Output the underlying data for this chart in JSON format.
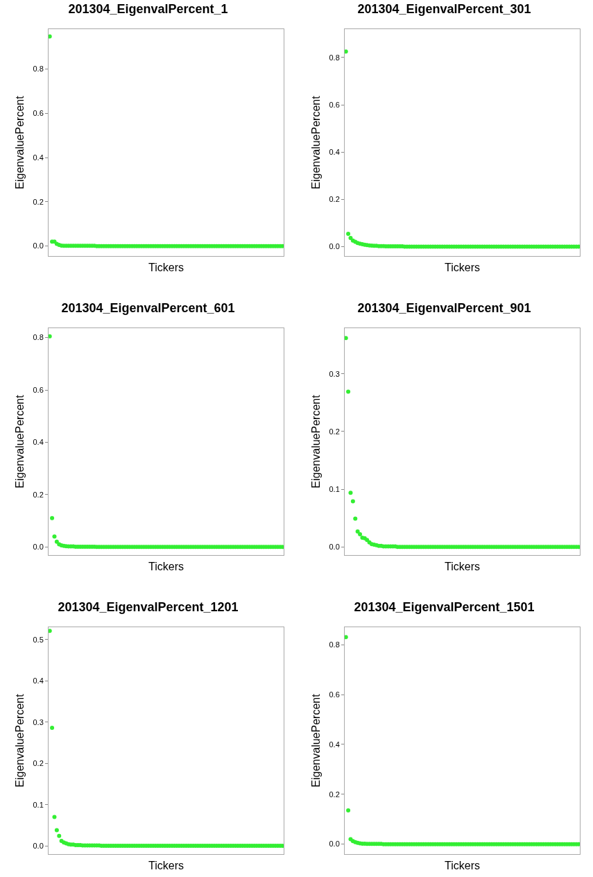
{
  "chart_data": [
    {
      "type": "scatter",
      "title": "201304_EigenvalPercent_1",
      "xlabel": "Tickers",
      "ylabel": "EigenvaluePercent",
      "marker": "circle",
      "grid": false,
      "ylim": [
        -0.045,
        0.98
      ],
      "yticks": [
        {
          "value": 0,
          "label": "0.0"
        },
        {
          "value": 0.2,
          "label": "0.2"
        },
        {
          "value": 0.4,
          "label": "0.4"
        },
        {
          "value": 0.6,
          "label": "0.6"
        },
        {
          "value": 0.8,
          "label": "0.8"
        }
      ],
      "categories": [
        null,
        null,
        null,
        null,
        null,
        null,
        null,
        null,
        null,
        null,
        null,
        null,
        null,
        null,
        null,
        null,
        null,
        null,
        null,
        null,
        null,
        null,
        null,
        null,
        null,
        null,
        null,
        null,
        null,
        null,
        null,
        null,
        null,
        null,
        null,
        null,
        null,
        null,
        null,
        null,
        null,
        null,
        null,
        null,
        null,
        null,
        null,
        null,
        null,
        null,
        null,
        null,
        null,
        null,
        null,
        null,
        null,
        null,
        null,
        null,
        null,
        null,
        null,
        null,
        null,
        null,
        null,
        null,
        null,
        null,
        null,
        null,
        null,
        null,
        null,
        null,
        null,
        null,
        null,
        null,
        null,
        null,
        null,
        null,
        null,
        null,
        null,
        null,
        null,
        null,
        null,
        null,
        null,
        null,
        null,
        null,
        null,
        null,
        null,
        null
      ],
      "series": [
        {
          "color": "#33ee33",
          "values": [
            0.947,
            0.02,
            0.02,
            0.01,
            0.005,
            0.002,
            0.001,
            0.001,
            0.001,
            0.001,
            0.001,
            0.001,
            0.001,
            0.001,
            0.001,
            0.001,
            0.001,
            0.001,
            0.001,
            0.001,
            0,
            0,
            0,
            0,
            0,
            0,
            0,
            0,
            0,
            0,
            0,
            0,
            0,
            0,
            0,
            0,
            0,
            0,
            0,
            0,
            0,
            0,
            0,
            0,
            0,
            0,
            0,
            0,
            0,
            0,
            0,
            0,
            0,
            0,
            0,
            0,
            0,
            0,
            0,
            0,
            0,
            0,
            0,
            0,
            0,
            0,
            0,
            0,
            0,
            0,
            0,
            0,
            0,
            0,
            0,
            0,
            0,
            0,
            0,
            0,
            0,
            0,
            0,
            0,
            0,
            0,
            0,
            0,
            0,
            0,
            0,
            0,
            0,
            0,
            0,
            0,
            0,
            0,
            0,
            0
          ]
        }
      ]
    },
    {
      "type": "scatter",
      "title": "201304_EigenvalPercent_301",
      "xlabel": "Tickers",
      "ylabel": "EigenvaluePercent",
      "marker": "circle",
      "grid": false,
      "ylim": [
        -0.04,
        0.92
      ],
      "yticks": [
        {
          "value": 0,
          "label": "0.0"
        },
        {
          "value": 0.2,
          "label": "0.2"
        },
        {
          "value": 0.4,
          "label": "0.4"
        },
        {
          "value": 0.6,
          "label": "0.6"
        },
        {
          "value": 0.8,
          "label": "0.8"
        }
      ],
      "categories": [
        null,
        null,
        null,
        null,
        null,
        null,
        null,
        null,
        null,
        null,
        null,
        null,
        null,
        null,
        null,
        null,
        null,
        null,
        null,
        null,
        null,
        null,
        null,
        null,
        null,
        null,
        null,
        null,
        null,
        null,
        null,
        null,
        null,
        null,
        null,
        null,
        null,
        null,
        null,
        null,
        null,
        null,
        null,
        null,
        null,
        null,
        null,
        null,
        null,
        null,
        null,
        null,
        null,
        null,
        null,
        null,
        null,
        null,
        null,
        null,
        null,
        null,
        null,
        null,
        null,
        null,
        null,
        null,
        null,
        null,
        null,
        null,
        null,
        null,
        null,
        null,
        null,
        null,
        null,
        null,
        null,
        null,
        null,
        null,
        null,
        null,
        null,
        null,
        null,
        null,
        null,
        null,
        null,
        null,
        null,
        null,
        null,
        null,
        null,
        null
      ],
      "series": [
        {
          "color": "#33ee33",
          "values": [
            0.825,
            0.054,
            0.036,
            0.025,
            0.02,
            0.015,
            0.012,
            0.01,
            0.008,
            0.006,
            0.005,
            0.004,
            0.003,
            0.003,
            0.002,
            0.002,
            0.002,
            0.001,
            0.001,
            0.001,
            0.001,
            0.001,
            0.001,
            0.001,
            0.001,
            0,
            0,
            0,
            0,
            0,
            0,
            0,
            0,
            0,
            0,
            0,
            0,
            0,
            0,
            0,
            0,
            0,
            0,
            0,
            0,
            0,
            0,
            0,
            0,
            0,
            0,
            0,
            0,
            0,
            0,
            0,
            0,
            0,
            0,
            0,
            0,
            0,
            0,
            0,
            0,
            0,
            0,
            0,
            0,
            0,
            0,
            0,
            0,
            0,
            0,
            0,
            0,
            0,
            0,
            0,
            0,
            0,
            0,
            0,
            0,
            0,
            0,
            0,
            0,
            0,
            0,
            0,
            0,
            0,
            0,
            0,
            0,
            0,
            0,
            0
          ]
        }
      ]
    },
    {
      "type": "scatter",
      "title": "201304_EigenvalPercent_601",
      "xlabel": "Tickers",
      "ylabel": "EigenvaluePercent",
      "marker": "circle",
      "grid": false,
      "ylim": [
        -0.031,
        0.836
      ],
      "yticks": [
        {
          "value": 0,
          "label": "0.0"
        },
        {
          "value": 0.2,
          "label": "0.2"
        },
        {
          "value": 0.4,
          "label": "0.4"
        },
        {
          "value": 0.6,
          "label": "0.6"
        },
        {
          "value": 0.8,
          "label": "0.8"
        }
      ],
      "categories": [
        null,
        null,
        null,
        null,
        null,
        null,
        null,
        null,
        null,
        null,
        null,
        null,
        null,
        null,
        null,
        null,
        null,
        null,
        null,
        null,
        null,
        null,
        null,
        null,
        null,
        null,
        null,
        null,
        null,
        null,
        null,
        null,
        null,
        null,
        null,
        null,
        null,
        null,
        null,
        null,
        null,
        null,
        null,
        null,
        null,
        null,
        null,
        null,
        null,
        null,
        null,
        null,
        null,
        null,
        null,
        null,
        null,
        null,
        null,
        null,
        null,
        null,
        null,
        null,
        null,
        null,
        null,
        null,
        null,
        null,
        null,
        null,
        null,
        null,
        null,
        null,
        null,
        null,
        null,
        null,
        null,
        null,
        null,
        null,
        null,
        null,
        null,
        null,
        null,
        null,
        null,
        null,
        null,
        null,
        null,
        null,
        null,
        null,
        null,
        null
      ],
      "series": [
        {
          "color": "#33ee33",
          "values": [
            0.805,
            0.11,
            0.04,
            0.02,
            0.01,
            0.006,
            0.004,
            0.003,
            0.002,
            0.002,
            0.002,
            0.001,
            0.001,
            0.001,
            0.001,
            0.001,
            0.001,
            0.001,
            0.001,
            0.001,
            0,
            0,
            0,
            0,
            0,
            0,
            0,
            0,
            0,
            0,
            0,
            0,
            0,
            0,
            0,
            0,
            0,
            0,
            0,
            0,
            0,
            0,
            0,
            0,
            0,
            0,
            0,
            0,
            0,
            0,
            0,
            0,
            0,
            0,
            0,
            0,
            0,
            0,
            0,
            0,
            0,
            0,
            0,
            0,
            0,
            0,
            0,
            0,
            0,
            0,
            0,
            0,
            0,
            0,
            0,
            0,
            0,
            0,
            0,
            0,
            0,
            0,
            0,
            0,
            0,
            0,
            0,
            0,
            0,
            0,
            0,
            0,
            0,
            0,
            0,
            0,
            0,
            0,
            0,
            0
          ]
        }
      ]
    },
    {
      "type": "scatter",
      "title": "201304_EigenvalPercent_901",
      "xlabel": "Tickers",
      "ylabel": "EigenvaluePercent",
      "marker": "circle",
      "grid": false,
      "ylim": [
        -0.014,
        0.379
      ],
      "yticks": [
        {
          "value": 0,
          "label": "0.0"
        },
        {
          "value": 0.1,
          "label": "0.1"
        },
        {
          "value": 0.2,
          "label": "0.2"
        },
        {
          "value": 0.3,
          "label": "0.3"
        }
      ],
      "categories": [
        null,
        null,
        null,
        null,
        null,
        null,
        null,
        null,
        null,
        null,
        null,
        null,
        null,
        null,
        null,
        null,
        null,
        null,
        null,
        null,
        null,
        null,
        null,
        null,
        null,
        null,
        null,
        null,
        null,
        null,
        null,
        null,
        null,
        null,
        null,
        null,
        null,
        null,
        null,
        null,
        null,
        null,
        null,
        null,
        null,
        null,
        null,
        null,
        null,
        null,
        null,
        null,
        null,
        null,
        null,
        null,
        null,
        null,
        null,
        null,
        null,
        null,
        null,
        null,
        null,
        null,
        null,
        null,
        null,
        null,
        null,
        null,
        null,
        null,
        null,
        null,
        null,
        null,
        null,
        null,
        null,
        null,
        null,
        null,
        null,
        null,
        null,
        null,
        null,
        null,
        null,
        null,
        null,
        null,
        null,
        null,
        null,
        null,
        null,
        null
      ],
      "series": [
        {
          "color": "#33ee33",
          "values": [
            0.362,
            0.269,
            0.094,
            0.079,
            0.049,
            0.027,
            0.022,
            0.016,
            0.015,
            0.012,
            0.008,
            0.005,
            0.004,
            0.003,
            0.002,
            0.002,
            0.001,
            0.001,
            0.001,
            0.001,
            0.001,
            0.001,
            0,
            0,
            0,
            0,
            0,
            0,
            0,
            0,
            0,
            0,
            0,
            0,
            0,
            0,
            0,
            0,
            0,
            0,
            0,
            0,
            0,
            0,
            0,
            0,
            0,
            0,
            0,
            0,
            0,
            0,
            0,
            0,
            0,
            0,
            0,
            0,
            0,
            0,
            0,
            0,
            0,
            0,
            0,
            0,
            0,
            0,
            0,
            0,
            0,
            0,
            0,
            0,
            0,
            0,
            0,
            0,
            0,
            0,
            0,
            0,
            0,
            0,
            0,
            0,
            0,
            0,
            0,
            0,
            0,
            0,
            0,
            0,
            0,
            0,
            0,
            0,
            0,
            0
          ]
        }
      ]
    },
    {
      "type": "scatter",
      "title": "201304_EigenvalPercent_1201",
      "xlabel": "Tickers",
      "ylabel": "EigenvaluePercent",
      "marker": "circle",
      "grid": false,
      "ylim": [
        -0.02,
        0.53
      ],
      "yticks": [
        {
          "value": 0,
          "label": "0.0"
        },
        {
          "value": 0.1,
          "label": "0.1"
        },
        {
          "value": 0.2,
          "label": "0.2"
        },
        {
          "value": 0.3,
          "label": "0.3"
        },
        {
          "value": 0.4,
          "label": "0.4"
        },
        {
          "value": 0.5,
          "label": "0.5"
        }
      ],
      "categories": [
        null,
        null,
        null,
        null,
        null,
        null,
        null,
        null,
        null,
        null,
        null,
        null,
        null,
        null,
        null,
        null,
        null,
        null,
        null,
        null,
        null,
        null,
        null,
        null,
        null,
        null,
        null,
        null,
        null,
        null,
        null,
        null,
        null,
        null,
        null,
        null,
        null,
        null,
        null,
        null,
        null,
        null,
        null,
        null,
        null,
        null,
        null,
        null,
        null,
        null,
        null,
        null,
        null,
        null,
        null,
        null,
        null,
        null,
        null,
        null,
        null,
        null,
        null,
        null,
        null,
        null,
        null,
        null,
        null,
        null,
        null,
        null,
        null,
        null,
        null,
        null,
        null,
        null,
        null,
        null,
        null,
        null,
        null,
        null,
        null,
        null,
        null,
        null,
        null,
        null,
        null,
        null,
        null,
        null,
        null,
        null,
        null,
        null,
        null,
        null
      ],
      "series": [
        {
          "color": "#33ee33",
          "values": [
            0.521,
            0.286,
            0.07,
            0.038,
            0.024,
            0.012,
            0.008,
            0.006,
            0.004,
            0.003,
            0.003,
            0.002,
            0.002,
            0.002,
            0.001,
            0.001,
            0.001,
            0.001,
            0.001,
            0.001,
            0.001,
            0.001,
            0,
            0,
            0,
            0,
            0,
            0,
            0,
            0,
            0,
            0,
            0,
            0,
            0,
            0,
            0,
            0,
            0,
            0,
            0,
            0,
            0,
            0,
            0,
            0,
            0,
            0,
            0,
            0,
            0,
            0,
            0,
            0,
            0,
            0,
            0,
            0,
            0,
            0,
            0,
            0,
            0,
            0,
            0,
            0,
            0,
            0,
            0,
            0,
            0,
            0,
            0,
            0,
            0,
            0,
            0,
            0,
            0,
            0,
            0,
            0,
            0,
            0,
            0,
            0,
            0,
            0,
            0,
            0,
            0,
            0,
            0,
            0,
            0,
            0,
            0,
            0,
            0,
            0
          ]
        }
      ]
    },
    {
      "type": "scatter",
      "title": "201304_EigenvalPercent_1501",
      "xlabel": "Tickers",
      "ylabel": "EigenvaluePercent",
      "marker": "circle",
      "grid": false,
      "ylim": [
        -0.04,
        0.87
      ],
      "yticks": [
        {
          "value": 0,
          "label": "0.0"
        },
        {
          "value": 0.2,
          "label": "0.2"
        },
        {
          "value": 0.4,
          "label": "0.4"
        },
        {
          "value": 0.6,
          "label": "0.6"
        },
        {
          "value": 0.8,
          "label": "0.8"
        }
      ],
      "categories": [
        null,
        null,
        null,
        null,
        null,
        null,
        null,
        null,
        null,
        null,
        null,
        null,
        null,
        null,
        null,
        null,
        null,
        null,
        null,
        null,
        null,
        null,
        null,
        null,
        null,
        null,
        null,
        null,
        null,
        null,
        null,
        null,
        null,
        null,
        null,
        null,
        null,
        null,
        null,
        null,
        null,
        null,
        null,
        null,
        null,
        null,
        null,
        null,
        null,
        null,
        null,
        null,
        null,
        null,
        null,
        null,
        null,
        null,
        null,
        null,
        null,
        null,
        null,
        null,
        null,
        null,
        null,
        null,
        null,
        null,
        null,
        null,
        null,
        null,
        null,
        null,
        null,
        null,
        null,
        null,
        null,
        null,
        null,
        null,
        null,
        null,
        null,
        null,
        null,
        null,
        null,
        null,
        null,
        null,
        null,
        null,
        null,
        null,
        null,
        null
      ],
      "series": [
        {
          "color": "#33ee33",
          "values": [
            0.83,
            0.135,
            0.02,
            0.012,
            0.008,
            0.005,
            0.003,
            0.002,
            0.002,
            0.001,
            0.001,
            0.001,
            0.001,
            0.001,
            0.001,
            0.001,
            0,
            0,
            0,
            0,
            0,
            0,
            0,
            0,
            0,
            0,
            0,
            0,
            0,
            0,
            0,
            0,
            0,
            0,
            0,
            0,
            0,
            0,
            0,
            0,
            0,
            0,
            0,
            0,
            0,
            0,
            0,
            0,
            0,
            0,
            0,
            0,
            0,
            0,
            0,
            0,
            0,
            0,
            0,
            0,
            0,
            0,
            0,
            0,
            0,
            0,
            0,
            0,
            0,
            0,
            0,
            0,
            0,
            0,
            0,
            0,
            0,
            0,
            0,
            0,
            0,
            0,
            0,
            0,
            0,
            0,
            0,
            0,
            0,
            0,
            0,
            0,
            0,
            0,
            0,
            0,
            0,
            0,
            0,
            0
          ]
        }
      ]
    }
  ]
}
